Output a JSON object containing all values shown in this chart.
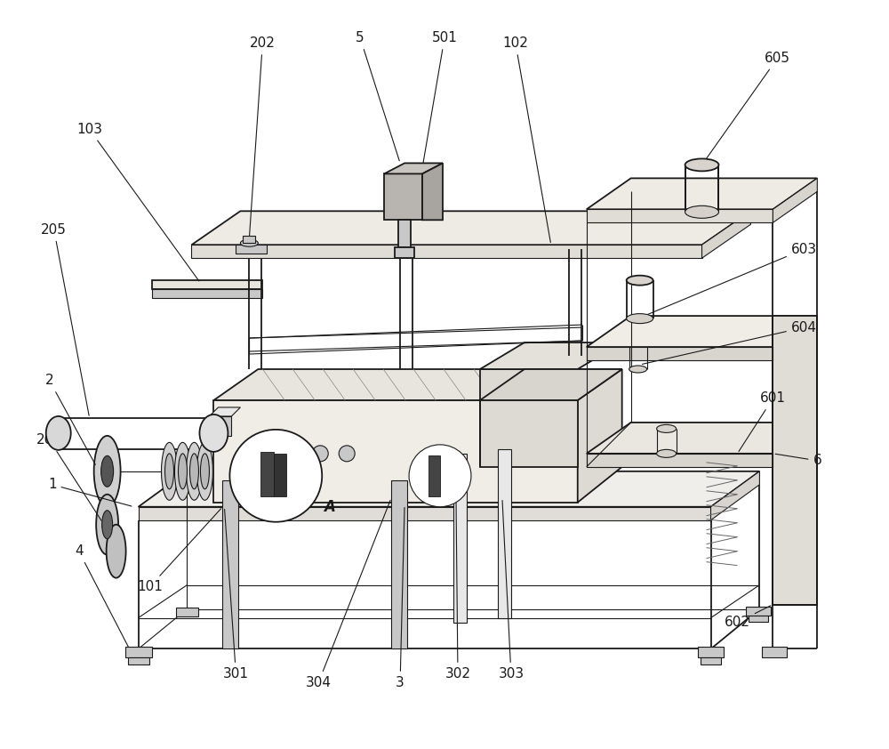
{
  "bg_color": "#ffffff",
  "line_color": "#1a1a1a",
  "label_color": "#1a1a1a",
  "gray_light": "#e8e8e8",
  "gray_mid": "#c8c8c8",
  "gray_dark": "#888888",
  "lw_main": 1.3,
  "lw_thin": 0.8,
  "lw_thick": 1.8,
  "font_size": 11,
  "fig_w": 10.0,
  "fig_h": 8.42,
  "dpi": 100
}
